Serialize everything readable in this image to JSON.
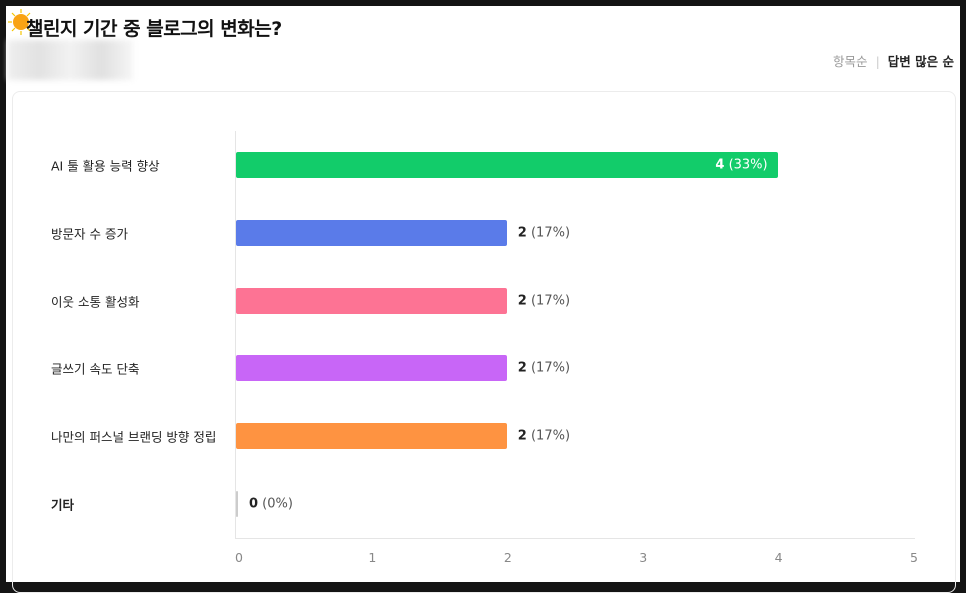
{
  "header": {
    "title": "챌린지 기간 중 블로그의 변화는?",
    "sort_options": [
      "항목순",
      "답변 많은 순"
    ],
    "active_sort": "답변 많은 순"
  },
  "chart_data": {
    "type": "bar",
    "orientation": "horizontal",
    "categories": [
      "AI 툴 활용 능력 향상",
      "방문자 수 증가",
      "이웃 소통 활성화",
      "글쓰기 속도 단축",
      "나만의 퍼스널 브랜딩 방향 정립",
      "기타"
    ],
    "values": [
      4,
      2,
      2,
      2,
      2,
      0
    ],
    "percent_labels": [
      "(33%)",
      "(17%)",
      "(17%)",
      "(17%)",
      "(17%)",
      "(0%)"
    ],
    "colors": [
      "#12cc6a",
      "#5a7be9",
      "#fd7394",
      "#c866f7",
      "#fe9341",
      "#cccccc"
    ],
    "xlim": [
      0,
      5
    ],
    "ticks": [
      "0",
      "1",
      "2",
      "3",
      "4",
      "5"
    ],
    "grid": false
  }
}
